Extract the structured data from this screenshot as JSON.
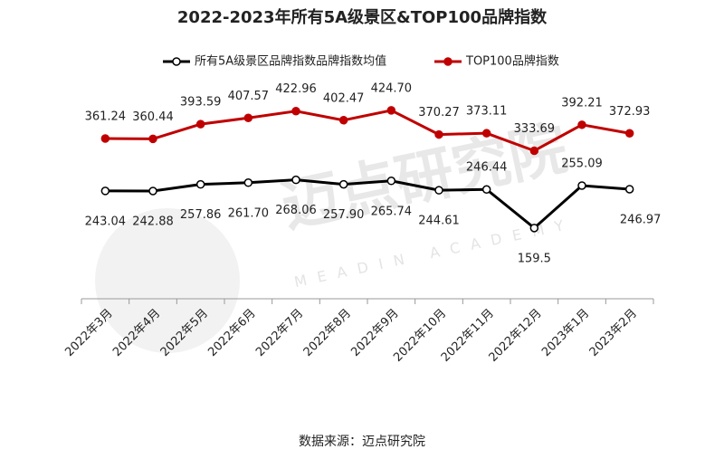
{
  "chart_data": {
    "type": "line",
    "title": "2022-2023年所有5A级景区&TOP100品牌指数",
    "categories": [
      "2022年3月",
      "2022年4月",
      "2022年5月",
      "2022年6月",
      "2022年7月",
      "2022年8月",
      "2022年9月",
      "2022年10月",
      "2022年11月",
      "2022年12月",
      "2023年1月",
      "2023年2月"
    ],
    "series": [
      {
        "name": "所有5A级景区品牌指数品牌指数均值",
        "color": "#000000",
        "values": [
          243.04,
          242.88,
          257.86,
          261.7,
          268.06,
          257.9,
          265.74,
          244.61,
          246.44,
          159.5,
          255.09,
          246.97
        ],
        "value_labels": [
          "243.04",
          "242.88",
          "257.86",
          "261.70",
          "268.06",
          "257.90",
          "265.74",
          "244.61",
          "246.44",
          "159.5",
          "255.09",
          "246.97"
        ]
      },
      {
        "name": "TOP100品牌指数",
        "color": "#c00000",
        "values": [
          361.24,
          360.44,
          393.59,
          407.57,
          422.96,
          402.47,
          424.7,
          370.27,
          373.11,
          333.69,
          392.21,
          372.93
        ],
        "value_labels": [
          "361.24",
          "360.44",
          "393.59",
          "407.57",
          "422.96",
          "402.47",
          "424.70",
          "370.27",
          "373.11",
          "333.69",
          "392.21",
          "372.93"
        ]
      }
    ],
    "legend": "top",
    "watermark": "迈点研究院",
    "watermark_sub": "MEADIN ACADEMY",
    "source": "数据来源：迈点研究院"
  }
}
